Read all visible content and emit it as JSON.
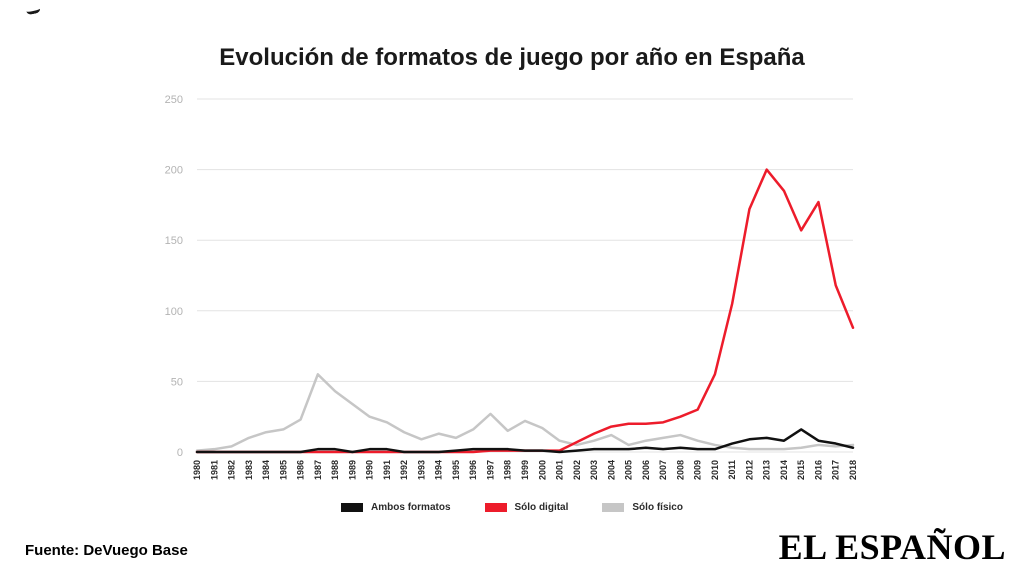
{
  "header": {
    "title": "Evolución de formatos de juego por año en España"
  },
  "footer": {
    "source": "Fuente: DeVuego Base",
    "brand": "EL ESPAÑOL"
  },
  "colors": {
    "grid": "#e3e3e3",
    "ytick": "#b3b3b3",
    "xtick": "#2b2b2b",
    "ambos": "#111111",
    "digital": "#ed1c2b",
    "fisico": "#c6c6c6"
  },
  "chart_data": {
    "type": "line",
    "title": "Evolución de formatos de juego por año en España",
    "xlabel": "",
    "ylabel": "",
    "ylim": [
      0,
      250
    ],
    "yticks": [
      0,
      50,
      100,
      150,
      200,
      250
    ],
    "grid": true,
    "legend_position": "bottom",
    "x": [
      1980,
      1981,
      1982,
      1983,
      1984,
      1985,
      1986,
      1987,
      1988,
      1989,
      1990,
      1991,
      1992,
      1993,
      1994,
      1995,
      1996,
      1997,
      1998,
      1999,
      2000,
      2001,
      2002,
      2003,
      2004,
      2005,
      2006,
      2007,
      2008,
      2009,
      2010,
      2011,
      2012,
      2013,
      2014,
      2015,
      2016,
      2017,
      2018
    ],
    "series": [
      {
        "name": "Ambos formatos",
        "color": "#111111",
        "values": [
          0,
          0,
          0,
          0,
          0,
          0,
          0,
          2,
          2,
          0,
          2,
          2,
          0,
          0,
          0,
          1,
          2,
          2,
          2,
          1,
          1,
          0,
          1,
          2,
          2,
          2,
          3,
          2,
          3,
          2,
          2,
          6,
          9,
          10,
          8,
          16,
          8,
          6,
          3
        ]
      },
      {
        "name": "Sólo digital",
        "color": "#ed1c2b",
        "values": [
          0,
          0,
          0,
          0,
          0,
          0,
          0,
          0,
          0,
          0,
          0,
          0,
          0,
          0,
          0,
          0,
          0,
          1,
          1,
          1,
          1,
          1,
          7,
          13,
          18,
          20,
          20,
          21,
          25,
          30,
          55,
          105,
          172,
          200,
          185,
          157,
          177,
          118,
          88
        ]
      },
      {
        "name": "Sólo físico",
        "color": "#c6c6c6",
        "values": [
          1,
          2,
          4,
          10,
          14,
          16,
          23,
          55,
          43,
          34,
          25,
          21,
          14,
          9,
          13,
          10,
          16,
          27,
          15,
          22,
          17,
          8,
          5,
          8,
          12,
          5,
          8,
          10,
          12,
          8,
          5,
          3,
          2,
          2,
          2,
          3,
          5,
          4,
          5
        ]
      }
    ]
  }
}
